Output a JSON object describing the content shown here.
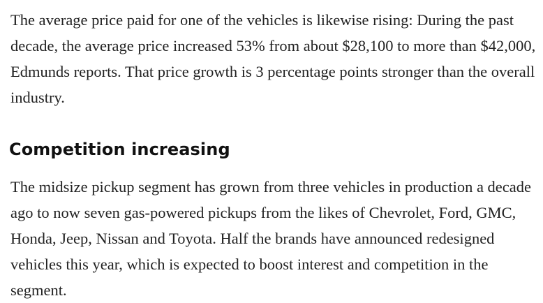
{
  "article": {
    "paragraph_1": "The average price paid for one of the vehicles is likewise rising: During the past decade, the average price increased 53% from about $28,100 to more than $42,000, Edmunds reports. That price growth is 3 percentage points stronger than the overall industry.",
    "heading": "Competition increasing",
    "paragraph_2": "The midsize pickup segment has grown from three vehicles in production a decade ago to now seven gas-powered pickups from the likes of Chevrolet, Ford, GMC, Honda, Jeep, Nissan and Toyota. Half the brands have announced redesigned vehicles this year, which is expected to boost interest and competition in the segment."
  }
}
